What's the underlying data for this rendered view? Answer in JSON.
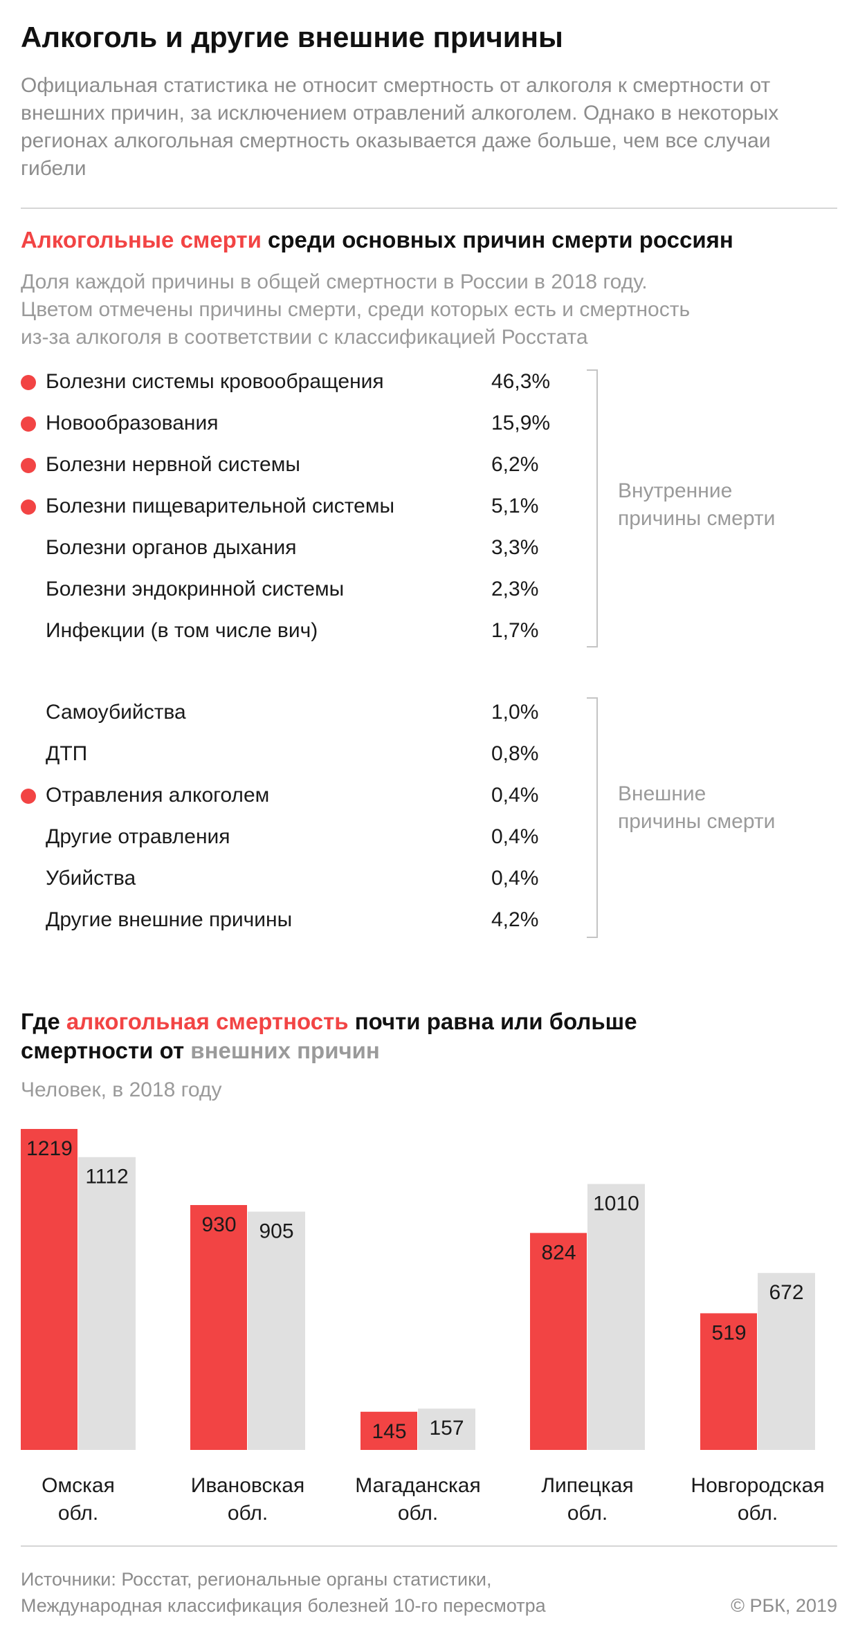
{
  "title": "Алкоголь и другие внешние причины",
  "intro": "Официальная статистика не относит смертность от алкоголя к смертности от внешних причин, за исключением отравлений алкоголем. Однако в некоторых регионах алкогольная смертность оказывается даже больше, чем все случаи гибели",
  "section1": {
    "title_highlight": "Алкогольные смерти",
    "title_rest": " среди основных причин смерти россиян",
    "subtitle_lines": [
      "Доля каждой причины в общей смертности в России в 2018 году.",
      "Цветом отмечены причины смерти, среди которых есть и смертность",
      "из-за алкоголя в соответствии с классификацией Росстата"
    ],
    "internal_label": "Внутренние\nпричины смерти",
    "external_label": "Внешние\nпричины смерти",
    "internal": [
      {
        "label": "Болезни системы кровообращения",
        "value": "46,3%",
        "alcohol": true
      },
      {
        "label": "Новообразования",
        "value": "15,9%",
        "alcohol": true
      },
      {
        "label": "Болезни нервной системы",
        "value": "6,2%",
        "alcohol": true
      },
      {
        "label": "Болезни пищеварительной системы",
        "value": "5,1%",
        "alcohol": true
      },
      {
        "label": "Болезни органов дыхания",
        "value": "3,3%",
        "alcohol": false
      },
      {
        "label": "Болезни эндокринной системы",
        "value": "2,3%",
        "alcohol": false
      },
      {
        "label": "Инфекции (в том числе вич)",
        "value": "1,7%",
        "alcohol": false
      }
    ],
    "external": [
      {
        "label": "Самоубийства",
        "value": "1,0%",
        "alcohol": false
      },
      {
        "label": "ДТП",
        "value": "0,8%",
        "alcohol": false
      },
      {
        "label": "Отравления алкоголем",
        "value": "0,4%",
        "alcohol": true
      },
      {
        "label": "Другие отравления",
        "value": "0,4%",
        "alcohol": false
      },
      {
        "label": "Убийства",
        "value": "0,4%",
        "alcohol": false
      },
      {
        "label": "Другие внешние причины",
        "value": "4,2%",
        "alcohol": false
      }
    ]
  },
  "section2": {
    "title_part1": "Где ",
    "title_highlight_red": "алкогольная смертность",
    "title_part2": " почти равна или больше",
    "title_part3": "смертности от ",
    "title_highlight_grey": "внешних причин",
    "subtitle": "Человек, в 2018 году"
  },
  "chart_data": {
    "type": "bar",
    "categories": [
      "Омская\nобл.",
      "Ивановская\nобл.",
      "Магаданская\nобл.",
      "Липецкая\nобл.",
      "Новгородская\nобл."
    ],
    "series": [
      {
        "values": [
          1219,
          930,
          145,
          824,
          519
        ],
        "color": "#f24444"
      },
      {
        "values": [
          1112,
          905,
          157,
          1010,
          672
        ],
        "color": "#e0e0e0"
      }
    ],
    "ylim": [
      0,
      1219
    ],
    "grid": false
  },
  "colors": {
    "accent": "#f24444",
    "external": "#e0e0e0",
    "muted": "#9a9a9a"
  },
  "footer": {
    "sources": "Источники: Росстат, региональные органы статистики,\nМеждународная классификация болезней 10-го пересмотра",
    "copyright": "© РБК, 2019"
  }
}
